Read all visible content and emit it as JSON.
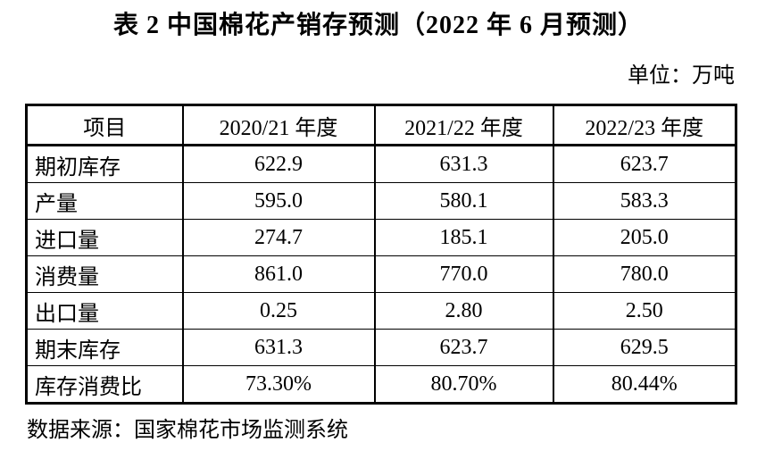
{
  "page": {
    "title": "表 2  中国棉花产销存预测（2022 年 6 月预测）",
    "unit_label": "单位：万吨",
    "source": "数据来源：国家棉花市场监测系统"
  },
  "table": {
    "columns": [
      "项目",
      "2020/21 年度",
      "2021/22 年度",
      "2022/23 年度"
    ],
    "rows": [
      {
        "label": "期初库存",
        "values": [
          "622.9",
          "631.3",
          "623.7"
        ]
      },
      {
        "label": "产量",
        "values": [
          "595.0",
          "580.1",
          "583.3"
        ]
      },
      {
        "label": "进口量",
        "values": [
          "274.7",
          "185.1",
          "205.0"
        ]
      },
      {
        "label": "消费量",
        "values": [
          "861.0",
          "770.0",
          "780.0"
        ]
      },
      {
        "label": "出口量",
        "values": [
          "0.25",
          "2.80",
          "2.50"
        ]
      },
      {
        "label": "期末库存",
        "values": [
          "631.3",
          "623.7",
          "629.5"
        ]
      },
      {
        "label": "库存消费比",
        "values": [
          "73.30%",
          "80.70%",
          "80.44%"
        ]
      }
    ]
  },
  "colors": {
    "background": "#ffffff",
    "text": "#000000",
    "border": "#000000"
  }
}
